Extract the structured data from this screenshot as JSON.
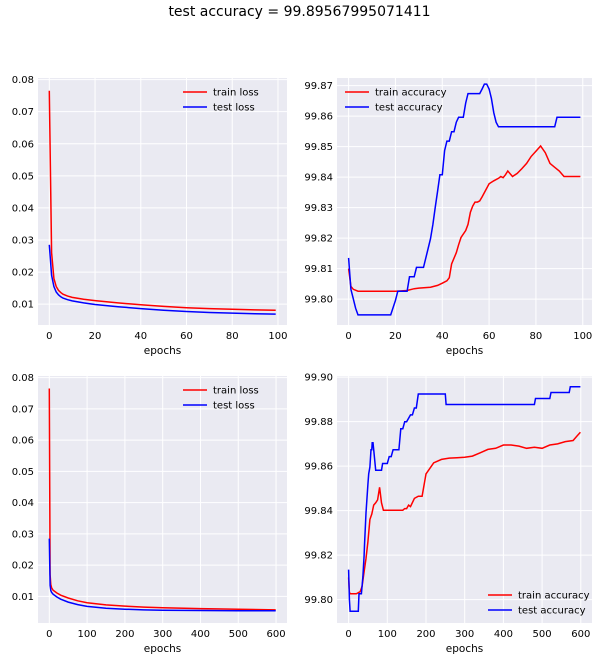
{
  "figure": {
    "suptitle": "test accuracy = 99.89567995071411"
  },
  "chart_data": [
    {
      "type": "line",
      "xlabel": "epochs",
      "ylabel": "",
      "xlim": [
        -4.95,
        103.95
      ],
      "ylim": [
        0.0035,
        0.0805
      ],
      "xticks": [
        0,
        20,
        40,
        60,
        80,
        100
      ],
      "yticks": [
        0.01,
        0.02,
        0.03,
        0.04,
        0.05,
        0.06,
        0.07,
        0.08
      ],
      "ytick_labels": [
        "0.01",
        "0.02",
        "0.03",
        "0.04",
        "0.05",
        "0.06",
        "0.07",
        "0.08"
      ],
      "legend": "top-right",
      "grid": true,
      "series": [
        {
          "name": "train loss",
          "color": "#ff0000",
          "x": [
            0,
            1,
            2,
            3,
            4,
            5,
            6,
            8,
            10,
            15,
            20,
            30,
            40,
            50,
            60,
            70,
            80,
            90,
            99
          ],
          "y": [
            0.0765,
            0.026,
            0.018,
            0.0155,
            0.0143,
            0.0136,
            0.0131,
            0.0125,
            0.0121,
            0.0115,
            0.0111,
            0.0104,
            0.0098,
            0.0093,
            0.0089,
            0.0086,
            0.0084,
            0.0082,
            0.0081
          ]
        },
        {
          "name": "test loss",
          "color": "#0000ff",
          "x": [
            0,
            1,
            2,
            3,
            4,
            5,
            6,
            8,
            10,
            15,
            20,
            30,
            40,
            50,
            60,
            70,
            80,
            90,
            99
          ],
          "y": [
            0.0285,
            0.019,
            0.0155,
            0.0138,
            0.0129,
            0.0123,
            0.0119,
            0.0114,
            0.011,
            0.0104,
            0.0099,
            0.0092,
            0.0086,
            0.0081,
            0.0077,
            0.0074,
            0.0072,
            0.007,
            0.0069
          ]
        }
      ]
    },
    {
      "type": "line",
      "xlabel": "epochs",
      "ylabel": "",
      "xlim": [
        -4.95,
        103.95
      ],
      "ylim": [
        99.7915,
        99.8725
      ],
      "xticks": [
        0,
        20,
        40,
        60,
        80,
        100
      ],
      "yticks": [
        99.8,
        99.81,
        99.82,
        99.83,
        99.84,
        99.85,
        99.86,
        99.87
      ],
      "ytick_labels": [
        "99.80",
        "99.81",
        "99.82",
        "99.83",
        "99.84",
        "99.85",
        "99.86",
        "99.87"
      ],
      "legend": "top-left",
      "grid": true,
      "series": [
        {
          "name": "train accuracy",
          "color": "#ff0000",
          "x": [
            0,
            1,
            2,
            4,
            10,
            20,
            25,
            28,
            30,
            35,
            38,
            40,
            42,
            43,
            44,
            46,
            47,
            48,
            50,
            51,
            52,
            53,
            54,
            55,
            56,
            57,
            60,
            62,
            64,
            65,
            66,
            67,
            68,
            70,
            72,
            74,
            76,
            78,
            80,
            82,
            84,
            86,
            88,
            90,
            92,
            94,
            96,
            98,
            99
          ],
          "y": [
            99.81,
            99.8042,
            99.8032,
            99.8026,
            99.8026,
            99.8026,
            99.8028,
            99.8034,
            99.8036,
            99.8039,
            99.8045,
            99.8052,
            99.806,
            99.807,
            99.8115,
            99.8152,
            99.8178,
            99.8202,
            99.8225,
            99.8245,
            99.8285,
            99.8305,
            99.8318,
            99.8318,
            99.8322,
            99.8335,
            99.8378,
            99.8388,
            99.8396,
            99.8402,
            99.8398,
            99.8408,
            99.842,
            99.8402,
            99.8412,
            99.8428,
            99.8445,
            99.8468,
            99.8485,
            99.8502,
            99.848,
            99.8445,
            99.8432,
            99.842,
            99.8402,
            99.8402,
            99.8402,
            99.8402,
            99.8402
          ]
        },
        {
          "name": "test accuracy",
          "color": "#0000ff",
          "x": [
            0,
            1,
            2,
            3,
            4,
            5,
            10,
            15,
            18,
            20,
            21,
            25,
            26,
            28,
            29,
            30,
            32,
            34,
            35,
            36,
            37,
            38,
            39,
            40,
            41,
            42,
            43,
            44,
            45,
            46,
            47,
            48,
            49,
            50,
            51,
            52,
            53,
            54,
            55,
            56,
            57,
            58,
            59,
            60,
            61,
            62,
            63,
            64,
            65,
            70,
            75,
            80,
            85,
            88,
            89,
            90,
            95,
            99
          ],
          "y": [
            99.8135,
            99.8032,
            99.8001,
            99.797,
            99.7948,
            99.7948,
            99.7948,
            99.7948,
            99.7948,
            99.7995,
            99.8026,
            99.8026,
            99.8073,
            99.8073,
            99.8104,
            99.8104,
            99.8104,
            99.8167,
            99.8198,
            99.8245,
            99.83,
            99.8354,
            99.8408,
            99.8408,
            99.8487,
            99.8518,
            99.8518,
            99.8549,
            99.8549,
            99.858,
            99.8596,
            99.8596,
            99.8596,
            99.8643,
            99.8674,
            99.8674,
            99.8674,
            99.8674,
            99.8674,
            99.8674,
            99.8689,
            99.8705,
            99.8705,
            99.8689,
            99.8658,
            99.8611,
            99.858,
            99.8565,
            99.8565,
            99.8565,
            99.8565,
            99.8565,
            99.8565,
            99.8565,
            99.8596,
            99.8596,
            99.8596,
            99.8596
          ]
        }
      ]
    },
    {
      "type": "line",
      "xlabel": "epochs",
      "ylabel": "",
      "xlim": [
        -29.95,
        628.95
      ],
      "ylim": [
        0.0015,
        0.0805
      ],
      "xticks": [
        0,
        100,
        200,
        300,
        400,
        500,
        600
      ],
      "yticks": [
        0.01,
        0.02,
        0.03,
        0.04,
        0.05,
        0.06,
        0.07,
        0.08
      ],
      "ytick_labels": [
        "0.01",
        "0.02",
        "0.03",
        "0.04",
        "0.05",
        "0.06",
        "0.07",
        "0.08"
      ],
      "legend": "top-right",
      "grid": true,
      "series": [
        {
          "name": "train loss",
          "color": "#ff0000",
          "x": [
            0,
            2,
            4,
            6,
            10,
            20,
            30,
            50,
            75,
            100,
            150,
            200,
            250,
            300,
            400,
            500,
            599
          ],
          "y": [
            0.0765,
            0.017,
            0.0138,
            0.0128,
            0.012,
            0.0111,
            0.0104,
            0.0095,
            0.0086,
            0.008,
            0.0073,
            0.0069,
            0.0066,
            0.0064,
            0.0061,
            0.0059,
            0.0057
          ]
        },
        {
          "name": "test loss",
          "color": "#0000ff",
          "x": [
            0,
            2,
            4,
            6,
            10,
            20,
            30,
            50,
            75,
            100,
            150,
            200,
            250,
            300,
            400,
            500,
            599
          ],
          "y": [
            0.0285,
            0.0135,
            0.0119,
            0.0113,
            0.0107,
            0.0098,
            0.0091,
            0.0082,
            0.0074,
            0.0068,
            0.0062,
            0.0059,
            0.0057,
            0.0056,
            0.0055,
            0.0054,
            0.0054
          ]
        }
      ]
    },
    {
      "type": "line",
      "xlabel": "epochs",
      "ylabel": "",
      "xlim": [
        -29.95,
        628.95
      ],
      "ylim": [
        99.7895,
        99.9005
      ],
      "xticks": [
        0,
        100,
        200,
        300,
        400,
        500,
        600
      ],
      "yticks": [
        99.8,
        99.82,
        99.84,
        99.86,
        99.88,
        99.9
      ],
      "ytick_labels": [
        "99.80",
        "99.82",
        "99.84",
        "99.86",
        "99.88",
        "99.90"
      ],
      "legend": "bottom-right",
      "grid": true,
      "series": [
        {
          "name": "train accuracy",
          "color": "#ff0000",
          "x": [
            0,
            2,
            5,
            20,
            30,
            35,
            40,
            45,
            50,
            55,
            60,
            65,
            70,
            75,
            80,
            85,
            90,
            100,
            120,
            140,
            145,
            150,
            155,
            160,
            170,
            180,
            190,
            200,
            210,
            220,
            240,
            260,
            280,
            300,
            320,
            340,
            360,
            380,
            400,
            420,
            440,
            460,
            480,
            500,
            520,
            540,
            560,
            580,
            590,
            599
          ],
          "y": [
            99.81,
            99.8032,
            99.8026,
            99.8026,
            99.8036,
            99.806,
            99.8125,
            99.8185,
            99.826,
            99.836,
            99.8385,
            99.8425,
            99.8435,
            99.8448,
            99.8505,
            99.8435,
            99.8402,
            99.8402,
            99.8402,
            99.8402,
            99.8409,
            99.8409,
            99.8425,
            99.8418,
            99.8455,
            99.8465,
            99.8465,
            99.8565,
            99.859,
            99.8615,
            99.863,
            99.8636,
            99.8638,
            99.864,
            99.8645,
            99.866,
            99.8675,
            99.868,
            99.8695,
            99.8695,
            99.869,
            99.868,
            99.8685,
            99.868,
            99.8695,
            99.87,
            99.871,
            99.8715,
            99.8735,
            99.8752
          ]
        },
        {
          "name": "test accuracy",
          "color": "#0000ff",
          "x": [
            0,
            2,
            4,
            6,
            8,
            10,
            20,
            25,
            27,
            29,
            33,
            37,
            40,
            41,
            45,
            50,
            52,
            55,
            58,
            60,
            61,
            63,
            65,
            70,
            75,
            85,
            88,
            90,
            100,
            105,
            110,
            115,
            120,
            130,
            135,
            140,
            145,
            150,
            160,
            165,
            170,
            175,
            180,
            190,
            200,
            210,
            220,
            230,
            240,
            250,
            252,
            300,
            350,
            400,
            450,
            480,
            483,
            520,
            523,
            540,
            570,
            573,
            590,
            599
          ],
          "y": [
            99.8135,
            99.8001,
            99.7948,
            99.7948,
            99.7948,
            99.7948,
            99.7948,
            99.7948,
            99.8026,
            99.8026,
            99.8026,
            99.8104,
            99.8198,
            99.8245,
            99.839,
            99.8518,
            99.8565,
            99.8596,
            99.8674,
            99.8674,
            99.8705,
            99.8705,
            99.8674,
            99.8581,
            99.8581,
            99.8581,
            99.8612,
            99.8612,
            99.8612,
            99.8643,
            99.8643,
            99.8674,
            99.8674,
            99.8674,
            99.8768,
            99.8768,
            99.8799,
            99.8799,
            99.883,
            99.883,
            99.8861,
            99.8861,
            99.8924,
            99.8924,
            99.8924,
            99.8924,
            99.8924,
            99.8924,
            99.8924,
            99.8924,
            99.8877,
            99.8877,
            99.8877,
            99.8877,
            99.8877,
            99.8877,
            99.8904,
            99.8904,
            99.8931,
            99.8931,
            99.8931,
            99.8957,
            99.8957,
            99.8957
          ]
        }
      ]
    }
  ]
}
